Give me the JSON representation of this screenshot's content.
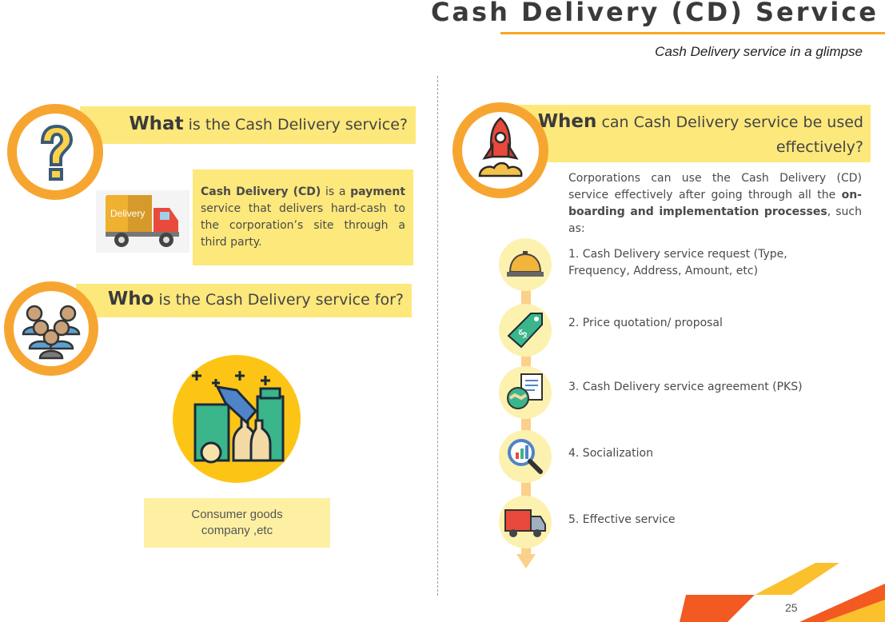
{
  "header": {
    "title": "Cash Delivery (CD) Service",
    "subtitle": "Cash Delivery service in a glimpse"
  },
  "what": {
    "heading_bold": "What",
    "heading_rest": " is the Cash Delivery service?",
    "image_label": "Delivery",
    "desc_bold1": "Cash Delivery (CD)",
    "desc_mid": " is a ",
    "desc_bold2": "payment",
    "desc_rest": " service that delivers hard-cash to the corporation’s site through a third party."
  },
  "who": {
    "heading_bold": "Who",
    "heading_rest": " is the Cash Delivery service for?",
    "target": "Consumer goods company ,etc"
  },
  "when": {
    "heading_bold": "When",
    "heading_rest": " can Cash Delivery service be used effectively?",
    "intro_start": "Corporations can use the Cash Delivery (CD) service effectively after going through all the ",
    "intro_bold": "on-boarding and implementation processes",
    "intro_end": ", such as:",
    "steps": [
      {
        "text": "1. Cash Delivery service request (Type, Frequency, Address, Amount, etc)",
        "icon": "service-bell-icon"
      },
      {
        "text": "2. Price quotation/ proposal",
        "icon": "price-tag-icon"
      },
      {
        "text": "3. Cash Delivery service agreement (PKS)",
        "icon": "agreement-handshake-icon"
      },
      {
        "text": "4. Socialization",
        "icon": "magnifier-chart-icon"
      },
      {
        "text": "5. Effective service",
        "icon": "delivery-truck-icon"
      }
    ]
  },
  "footer": {
    "page_number": "25"
  },
  "colors": {
    "accent_orange": "#f6a630",
    "band_yellow": "#fde87c",
    "corner_orange": "#f25a22",
    "corner_yellow": "#fbc02d"
  }
}
